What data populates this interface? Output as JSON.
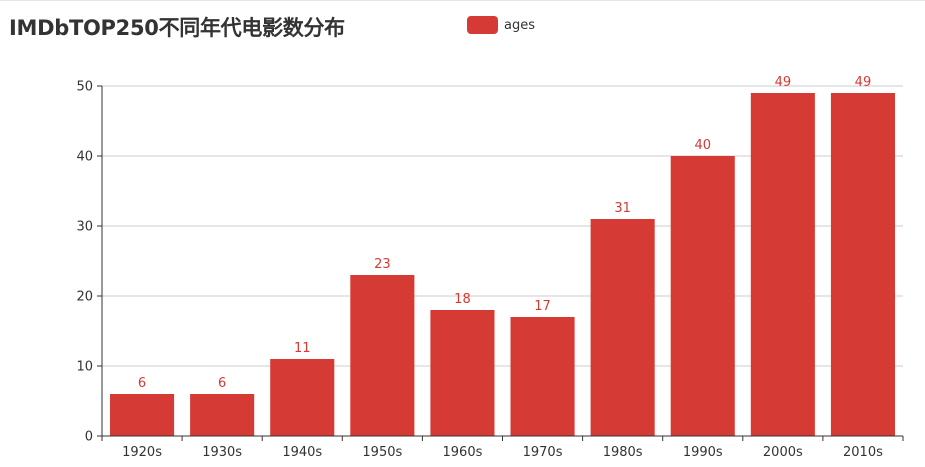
{
  "title": "IMDbTOP250不同年代电影数分布",
  "legend": {
    "label": "ages"
  },
  "colors": {
    "bar": "#d63a34",
    "axis": "#333333",
    "grid": "#cccccc"
  },
  "chart_data": {
    "type": "bar",
    "title": "IMDbTOP250不同年代电影数分布",
    "categories": [
      "1920s",
      "1930s",
      "1940s",
      "1950s",
      "1960s",
      "1970s",
      "1980s",
      "1990s",
      "2000s",
      "2010s"
    ],
    "series": [
      {
        "name": "ages",
        "values": [
          6,
          6,
          11,
          23,
          18,
          17,
          31,
          40,
          49,
          49
        ]
      }
    ],
    "ylim": [
      0,
      50
    ],
    "yticks": [
      0,
      10,
      20,
      30,
      40,
      50
    ],
    "grid": true,
    "legend_position": "top-center",
    "data_labels": true
  }
}
